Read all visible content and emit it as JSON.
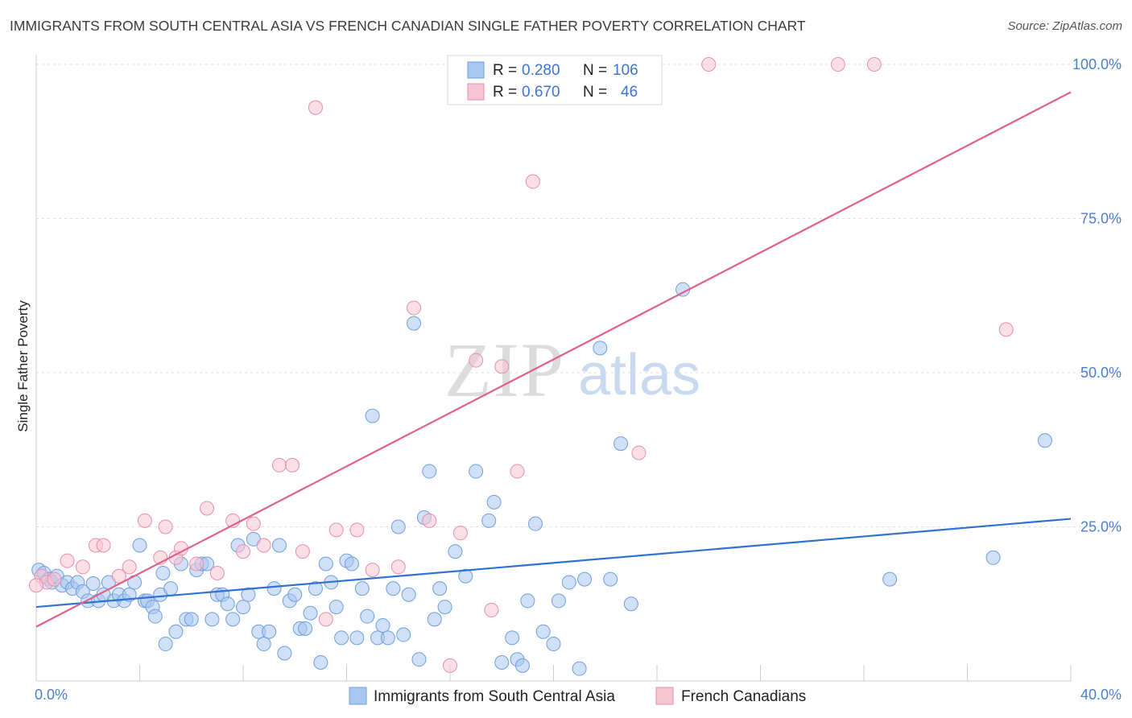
{
  "title": "IMMIGRANTS FROM SOUTH CENTRAL ASIA VS FRENCH CANADIAN SINGLE FATHER POVERTY CORRELATION CHART",
  "source": "Source: ZipAtlas.com",
  "watermark": {
    "zip": "ZIP",
    "atlas": "atlas"
  },
  "chart_data": {
    "type": "scatter",
    "ylabel": "Single Father Poverty",
    "xlabel": "",
    "xlim": [
      0,
      40
    ],
    "ylim": [
      0,
      100
    ],
    "x_tick_labels": [
      "0.0%",
      "40.0%"
    ],
    "y_ticks": [
      25,
      50,
      75,
      100
    ],
    "y_tick_labels": [
      "25.0%",
      "50.0%",
      "75.0%",
      "100.0%"
    ],
    "grid": true,
    "legend_position": "top-center",
    "stats": [
      {
        "r_label": "R =",
        "r": "0.280",
        "n_label": "N =",
        "n": "106"
      },
      {
        "r_label": "R =",
        "r": "0.670",
        "n_label": "N =",
        "n": "46"
      }
    ],
    "series": [
      {
        "name": "Immigrants from South Central Asia",
        "color": "#a7c7f0",
        "edge": "#6f9fdc",
        "trend_color": "#2f72d0",
        "trend": [
          [
            0,
            12.0
          ],
          [
            40,
            26.3
          ]
        ],
        "points": [
          [
            0.1,
            18
          ],
          [
            0.3,
            17.5
          ],
          [
            0.5,
            16.5
          ],
          [
            0.6,
            16
          ],
          [
            0.8,
            17
          ],
          [
            1.0,
            15.5
          ],
          [
            1.2,
            16
          ],
          [
            1.4,
            15
          ],
          [
            1.6,
            16
          ],
          [
            1.8,
            14.5
          ],
          [
            2.0,
            13
          ],
          [
            2.2,
            15.8
          ],
          [
            2.4,
            13
          ],
          [
            2.6,
            14
          ],
          [
            2.8,
            16
          ],
          [
            3.0,
            13
          ],
          [
            3.2,
            14
          ],
          [
            3.4,
            13
          ],
          [
            3.6,
            14
          ],
          [
            3.8,
            16
          ],
          [
            4.0,
            22
          ],
          [
            4.2,
            13
          ],
          [
            4.3,
            13
          ],
          [
            4.5,
            12
          ],
          [
            4.6,
            10.5
          ],
          [
            4.8,
            14
          ],
          [
            4.9,
            17.5
          ],
          [
            5.0,
            6
          ],
          [
            5.2,
            15
          ],
          [
            5.4,
            8
          ],
          [
            5.6,
            19
          ],
          [
            5.8,
            10
          ],
          [
            6.0,
            10
          ],
          [
            6.2,
            18
          ],
          [
            6.4,
            19
          ],
          [
            6.6,
            19
          ],
          [
            6.8,
            10
          ],
          [
            7.0,
            14
          ],
          [
            7.2,
            14
          ],
          [
            7.4,
            12.5
          ],
          [
            7.6,
            10
          ],
          [
            7.8,
            22
          ],
          [
            8.0,
            12
          ],
          [
            8.2,
            14
          ],
          [
            8.4,
            23
          ],
          [
            8.6,
            8
          ],
          [
            8.8,
            6
          ],
          [
            9.0,
            8
          ],
          [
            9.2,
            15
          ],
          [
            9.4,
            22
          ],
          [
            9.6,
            4.5
          ],
          [
            9.8,
            13
          ],
          [
            10.0,
            14
          ],
          [
            10.2,
            8.5
          ],
          [
            10.4,
            8.5
          ],
          [
            10.6,
            11
          ],
          [
            10.8,
            15
          ],
          [
            11.0,
            3
          ],
          [
            11.2,
            19
          ],
          [
            11.4,
            16
          ],
          [
            11.6,
            12
          ],
          [
            11.8,
            7
          ],
          [
            12.0,
            19.5
          ],
          [
            12.2,
            19
          ],
          [
            12.4,
            7
          ],
          [
            12.6,
            15
          ],
          [
            12.8,
            10.5
          ],
          [
            13.0,
            43
          ],
          [
            13.2,
            7
          ],
          [
            13.4,
            9
          ],
          [
            13.6,
            7
          ],
          [
            13.8,
            15
          ],
          [
            14.0,
            25
          ],
          [
            14.2,
            7.5
          ],
          [
            14.4,
            14
          ],
          [
            14.6,
            58
          ],
          [
            14.8,
            3.5
          ],
          [
            15.0,
            26.5
          ],
          [
            15.2,
            34
          ],
          [
            15.4,
            10
          ],
          [
            15.6,
            15
          ],
          [
            15.8,
            12
          ],
          [
            16.2,
            21
          ],
          [
            16.6,
            17
          ],
          [
            17.0,
            34
          ],
          [
            17.5,
            26
          ],
          [
            17.7,
            29
          ],
          [
            18.0,
            3
          ],
          [
            18.4,
            7
          ],
          [
            18.6,
            3.5
          ],
          [
            18.8,
            2.5
          ],
          [
            19.0,
            13
          ],
          [
            19.3,
            25.5
          ],
          [
            19.6,
            8
          ],
          [
            20.0,
            6
          ],
          [
            20.2,
            13
          ],
          [
            20.6,
            16
          ],
          [
            21.0,
            2
          ],
          [
            21.2,
            16.5
          ],
          [
            21.8,
            54
          ],
          [
            22.2,
            16.5
          ],
          [
            22.6,
            38.5
          ],
          [
            23.0,
            12.5
          ],
          [
            25.0,
            63.5
          ],
          [
            33.0,
            16.5
          ],
          [
            37.0,
            20
          ],
          [
            39.0,
            39
          ]
        ]
      },
      {
        "name": "French Canadians",
        "color": "#f7c4d3",
        "edge": "#e98ea9",
        "trend_color": "#e0608a",
        "trend": [
          [
            0,
            8.8
          ],
          [
            40,
            95.5
          ]
        ],
        "points": [
          [
            0.2,
            17
          ],
          [
            0.4,
            16
          ],
          [
            0.7,
            16.5
          ],
          [
            1.2,
            19.5
          ],
          [
            1.8,
            18.5
          ],
          [
            2.3,
            22
          ],
          [
            2.6,
            22
          ],
          [
            3.2,
            17
          ],
          [
            3.6,
            18.5
          ],
          [
            4.2,
            26
          ],
          [
            4.8,
            20
          ],
          [
            5.0,
            25
          ],
          [
            5.4,
            20
          ],
          [
            5.6,
            21.5
          ],
          [
            6.2,
            19
          ],
          [
            6.6,
            28
          ],
          [
            7.0,
            17.5
          ],
          [
            7.6,
            26
          ],
          [
            8.0,
            21
          ],
          [
            8.4,
            25.5
          ],
          [
            8.8,
            22
          ],
          [
            9.4,
            35
          ],
          [
            9.9,
            35
          ],
          [
            10.3,
            21
          ],
          [
            10.8,
            93
          ],
          [
            11.2,
            10
          ],
          [
            11.6,
            24.5
          ],
          [
            12.4,
            24.5
          ],
          [
            13.0,
            18
          ],
          [
            14.0,
            18.5
          ],
          [
            14.6,
            60.5
          ],
          [
            15.2,
            26
          ],
          [
            16.0,
            2.5
          ],
          [
            16.4,
            24
          ],
          [
            17.0,
            52
          ],
          [
            17.6,
            11.5
          ],
          [
            18.0,
            51
          ],
          [
            18.6,
            34
          ],
          [
            19.2,
            81
          ],
          [
            23.0,
            100
          ],
          [
            23.3,
            37
          ],
          [
            26.0,
            100
          ],
          [
            31.0,
            100
          ],
          [
            32.4,
            100
          ],
          [
            37.5,
            57
          ],
          [
            0.0,
            15.5
          ]
        ]
      }
    ]
  },
  "bottom_legend": [
    {
      "label": "Immigrants from South Central Asia"
    },
    {
      "label": "French Canadians"
    }
  ]
}
